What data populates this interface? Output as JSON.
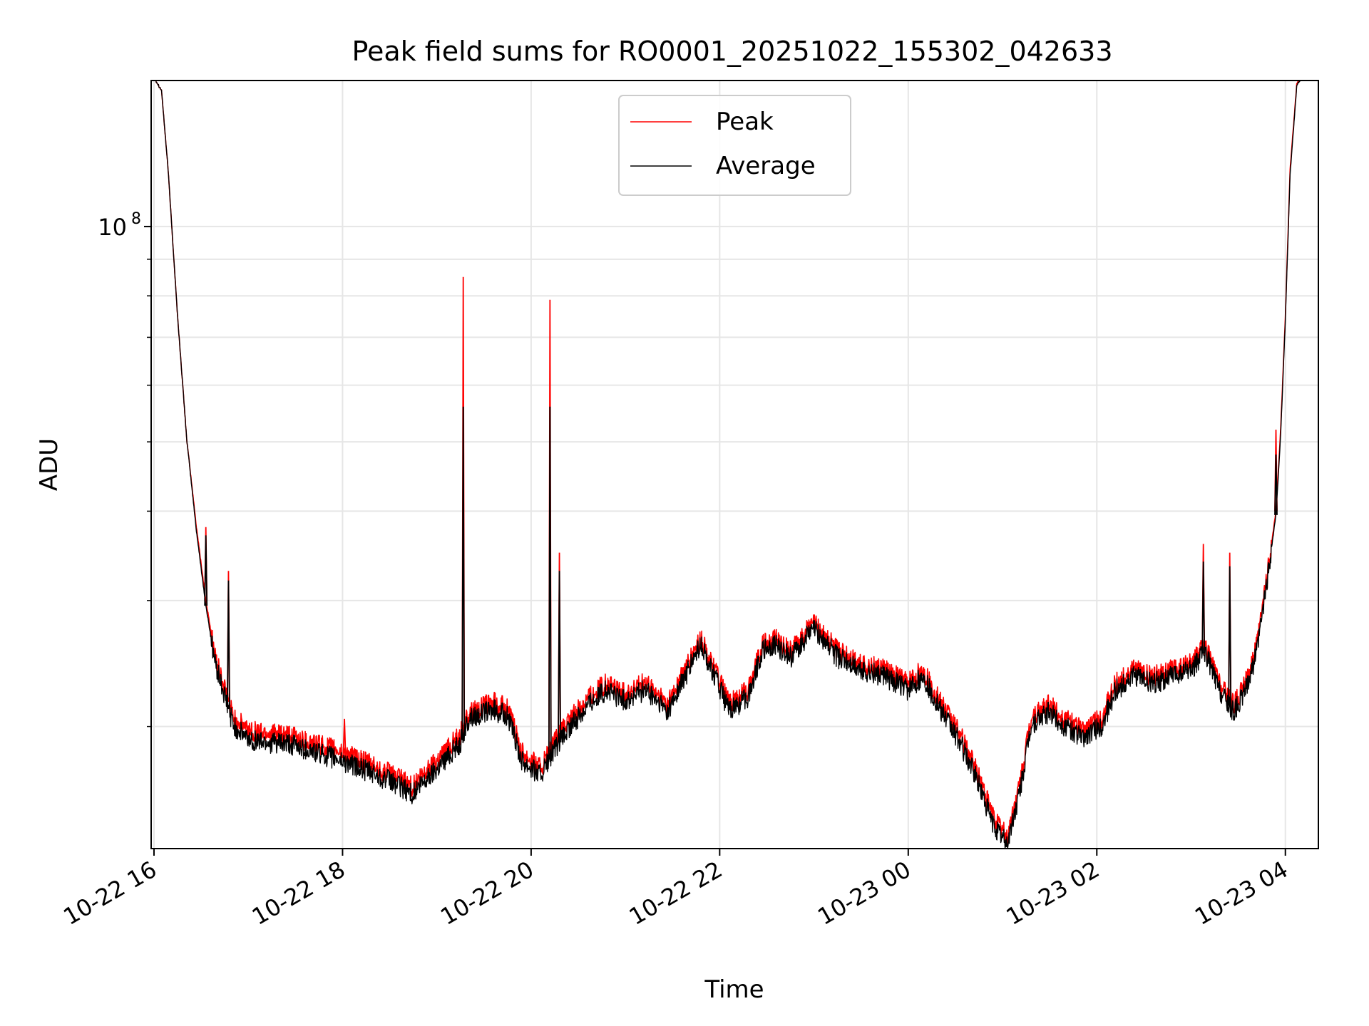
{
  "chart_data": {
    "type": "line",
    "title": "Peak field sums for RO0001_20251022_155302_042633",
    "xlabel": "Time",
    "ylabel": "ADU",
    "yscale": "log",
    "xlim_hours": [
      15.97,
      28.35
    ],
    "ylim": [
      13500000,
      160000000
    ],
    "x_ticks": [
      {
        "hour": 16,
        "label": "10-22 16"
      },
      {
        "hour": 18,
        "label": "10-22 18"
      },
      {
        "hour": 20,
        "label": "10-22 20"
      },
      {
        "hour": 22,
        "label": "10-22 22"
      },
      {
        "hour": 24,
        "label": "10-23 00"
      },
      {
        "hour": 26,
        "label": "10-23 02"
      },
      {
        "hour": 28,
        "label": "10-23 04"
      }
    ],
    "y_major_ticks": [
      {
        "value": 100000000,
        "base": "10",
        "exp": "8"
      }
    ],
    "y_minor_ticks": [
      20000000,
      30000000,
      40000000,
      50000000,
      60000000,
      70000000,
      80000000,
      90000000,
      200000000
    ],
    "grid": true,
    "legend_position": "upper center",
    "series": [
      {
        "name": "Peak",
        "color": "#ff0000",
        "points": [
          [
            16.02,
            160000000
          ],
          [
            16.08,
            155000000
          ],
          [
            16.15,
            120000000
          ],
          [
            16.25,
            75000000
          ],
          [
            16.35,
            50000000
          ],
          [
            16.45,
            38000000
          ],
          [
            16.55,
            30000000
          ],
          [
            16.65,
            25000000
          ],
          [
            16.75,
            22500000
          ],
          [
            16.85,
            20500000
          ],
          [
            17.0,
            19800000
          ],
          [
            17.5,
            19300000
          ],
          [
            18.0,
            18400000
          ],
          [
            18.5,
            17200000
          ],
          [
            18.75,
            16500000
          ],
          [
            19.0,
            18000000
          ],
          [
            19.25,
            19500000
          ],
          [
            19.35,
            21000000
          ],
          [
            19.6,
            21600000
          ],
          [
            19.75,
            21200000
          ],
          [
            19.9,
            18500000
          ],
          [
            20.1,
            17500000
          ],
          [
            20.3,
            19500000
          ],
          [
            20.6,
            22000000
          ],
          [
            20.8,
            23000000
          ],
          [
            21.0,
            22200000
          ],
          [
            21.2,
            23000000
          ],
          [
            21.45,
            21500000
          ],
          [
            21.6,
            23500000
          ],
          [
            21.8,
            26500000
          ],
          [
            21.95,
            24000000
          ],
          [
            22.1,
            21500000
          ],
          [
            22.3,
            22500000
          ],
          [
            22.45,
            26000000
          ],
          [
            22.6,
            26500000
          ],
          [
            22.75,
            25500000
          ],
          [
            23.0,
            28000000
          ],
          [
            23.25,
            25500000
          ],
          [
            23.5,
            24500000
          ],
          [
            23.75,
            24000000
          ],
          [
            24.0,
            23000000
          ],
          [
            24.15,
            24000000
          ],
          [
            24.35,
            21500000
          ],
          [
            24.55,
            19500000
          ],
          [
            24.75,
            17000000
          ],
          [
            24.9,
            15000000
          ],
          [
            25.05,
            14000000
          ],
          [
            25.2,
            17000000
          ],
          [
            25.3,
            20500000
          ],
          [
            25.5,
            21500000
          ],
          [
            25.65,
            20500000
          ],
          [
            25.85,
            19800000
          ],
          [
            26.05,
            20500000
          ],
          [
            26.2,
            23000000
          ],
          [
            26.4,
            24000000
          ],
          [
            26.6,
            23500000
          ],
          [
            26.8,
            24000000
          ],
          [
            27.0,
            24500000
          ],
          [
            27.15,
            26000000
          ],
          [
            27.3,
            23000000
          ],
          [
            27.45,
            21500000
          ],
          [
            27.55,
            22500000
          ],
          [
            27.7,
            26000000
          ],
          [
            27.8,
            32000000
          ],
          [
            27.9,
            40000000
          ],
          [
            27.95,
            52000000
          ],
          [
            28.0,
            75000000
          ],
          [
            28.05,
            120000000
          ],
          [
            28.12,
            158000000
          ],
          [
            28.2,
            165000000
          ]
        ],
        "spikes": [
          {
            "hour": 16.55,
            "value": 38000000
          },
          {
            "hour": 16.79,
            "value": 33000000
          },
          {
            "hour": 18.02,
            "value": 20500000
          },
          {
            "hour": 19.28,
            "value": 85000000
          },
          {
            "hour": 20.2,
            "value": 79000000
          },
          {
            "hour": 20.3,
            "value": 35000000
          },
          {
            "hour": 27.13,
            "value": 36000000
          },
          {
            "hour": 27.41,
            "value": 35000000
          },
          {
            "hour": 27.9,
            "value": 52000000
          }
        ]
      },
      {
        "name": "Average",
        "color": "#000000",
        "points": [
          [
            16.02,
            160000000
          ],
          [
            16.08,
            155000000
          ],
          [
            16.15,
            120000000
          ],
          [
            16.25,
            75000000
          ],
          [
            16.35,
            50000000
          ],
          [
            16.45,
            37500000
          ],
          [
            16.55,
            29500000
          ],
          [
            16.65,
            24500000
          ],
          [
            16.75,
            22000000
          ],
          [
            16.85,
            20000000
          ],
          [
            17.0,
            19200000
          ],
          [
            17.5,
            18800000
          ],
          [
            18.0,
            17900000
          ],
          [
            18.5,
            16800000
          ],
          [
            18.75,
            16100000
          ],
          [
            19.0,
            17500000
          ],
          [
            19.25,
            19000000
          ],
          [
            19.35,
            20600000
          ],
          [
            19.6,
            21100000
          ],
          [
            19.75,
            20700000
          ],
          [
            19.9,
            18000000
          ],
          [
            20.1,
            17100000
          ],
          [
            20.3,
            19000000
          ],
          [
            20.6,
            21500000
          ],
          [
            20.8,
            22500000
          ],
          [
            21.0,
            21700000
          ],
          [
            21.2,
            22500000
          ],
          [
            21.45,
            21000000
          ],
          [
            21.6,
            23000000
          ],
          [
            21.8,
            26000000
          ],
          [
            21.95,
            23500000
          ],
          [
            22.1,
            21000000
          ],
          [
            22.3,
            22000000
          ],
          [
            22.45,
            25500000
          ],
          [
            22.6,
            26000000
          ],
          [
            22.75,
            25000000
          ],
          [
            23.0,
            27500000
          ],
          [
            23.25,
            25000000
          ],
          [
            23.5,
            24000000
          ],
          [
            23.75,
            23500000
          ],
          [
            24.0,
            22500000
          ],
          [
            24.15,
            23500000
          ],
          [
            24.35,
            21000000
          ],
          [
            24.55,
            19000000
          ],
          [
            24.75,
            16600000
          ],
          [
            24.9,
            14600000
          ],
          [
            25.05,
            13700000
          ],
          [
            25.2,
            16600000
          ],
          [
            25.3,
            20000000
          ],
          [
            25.5,
            21000000
          ],
          [
            25.65,
            20000000
          ],
          [
            25.85,
            19300000
          ],
          [
            26.05,
            20000000
          ],
          [
            26.2,
            22500000
          ],
          [
            26.4,
            23500000
          ],
          [
            26.6,
            23000000
          ],
          [
            26.8,
            23500000
          ],
          [
            27.0,
            24000000
          ],
          [
            27.15,
            25500000
          ],
          [
            27.3,
            22500000
          ],
          [
            27.45,
            21000000
          ],
          [
            27.55,
            22000000
          ],
          [
            27.7,
            25500000
          ],
          [
            27.8,
            31500000
          ],
          [
            27.9,
            39500000
          ],
          [
            27.95,
            51000000
          ],
          [
            28.0,
            74000000
          ],
          [
            28.05,
            118000000
          ],
          [
            28.12,
            157000000
          ],
          [
            28.2,
            165000000
          ]
        ],
        "spikes": [
          {
            "hour": 16.55,
            "value": 37000000
          },
          {
            "hour": 16.79,
            "value": 32000000
          },
          {
            "hour": 19.28,
            "value": 56000000
          },
          {
            "hour": 20.2,
            "value": 56000000
          },
          {
            "hour": 20.3,
            "value": 33000000
          },
          {
            "hour": 27.13,
            "value": 34000000
          },
          {
            "hour": 27.41,
            "value": 33500000
          },
          {
            "hour": 27.9,
            "value": 48000000
          }
        ]
      }
    ]
  }
}
